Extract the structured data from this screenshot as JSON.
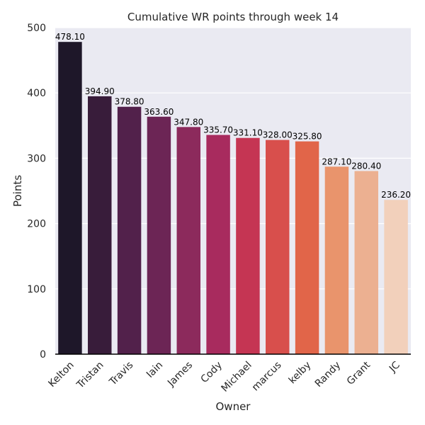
{
  "chart_data": {
    "type": "bar",
    "title": "Cumulative WR points through week 14",
    "xlabel": "Owner",
    "ylabel": "Points",
    "categories": [
      "Kelton",
      "Tristan",
      "Travis",
      "Iain",
      "James",
      "Cody",
      "Michael",
      "marcus",
      "kelby",
      "Randy",
      "Grant",
      "JC"
    ],
    "values": [
      478.1,
      394.9,
      378.8,
      363.6,
      347.8,
      335.7,
      331.1,
      328.0,
      325.8,
      287.1,
      280.4,
      236.2
    ],
    "value_labels": [
      "478.10",
      "394.90",
      "378.80",
      "363.60",
      "347.80",
      "335.70",
      "331.10",
      "328.00",
      "325.80",
      "287.10",
      "280.40",
      "236.20"
    ],
    "ylim": [
      0,
      500
    ],
    "yticks": [
      "0",
      "100",
      "200",
      "300",
      "400",
      "500"
    ],
    "grid": true,
    "colors": [
      "#1e1729",
      "#381c3a",
      "#52214b",
      "#6c2555",
      "#8c2a5c",
      "#a82b5e",
      "#c53553",
      "#d84f4c",
      "#e16549",
      "#e9946c",
      "#ecb091",
      "#f2d0bb"
    ],
    "background": "#eaeaf2"
  }
}
